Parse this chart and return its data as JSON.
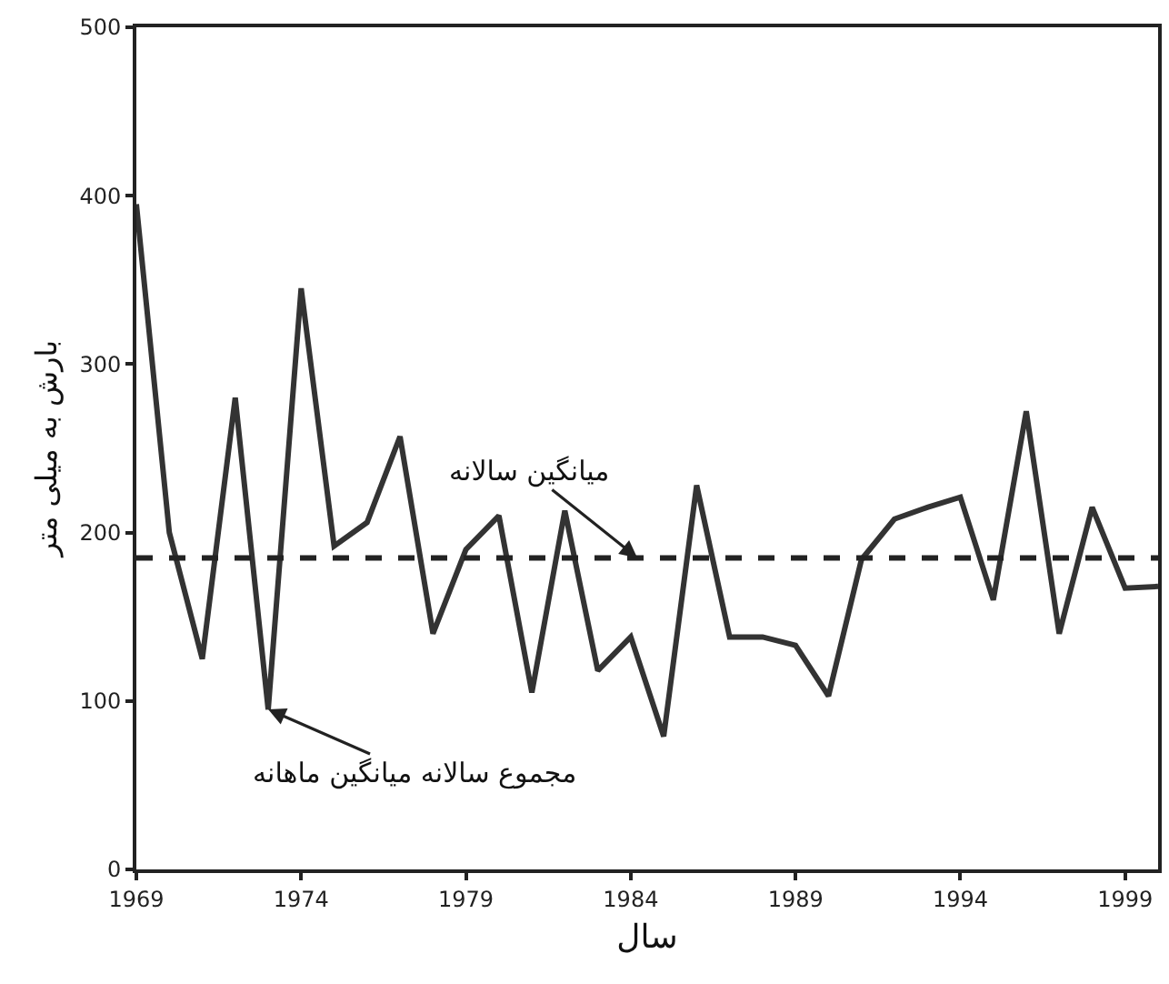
{
  "chart_data": {
    "type": "line",
    "xlabel": "سال",
    "ylabel": "بارش به میلی متر",
    "x": [
      1969,
      1970,
      1971,
      1972,
      1973,
      1974,
      1975,
      1976,
      1977,
      1978,
      1979,
      1980,
      1981,
      1982,
      1983,
      1984,
      1985,
      1986,
      1987,
      1988,
      1989,
      1990,
      1991,
      1992,
      1993,
      1994,
      1995,
      1996,
      1997,
      1998,
      1999,
      2000
    ],
    "series": [
      {
        "color": "#333333",
        "values": [
          395,
          200,
          125,
          280,
          95,
          345,
          192,
          206,
          257,
          140,
          190,
          210,
          105,
          213,
          118,
          138,
          79,
          228,
          138,
          138,
          133,
          103,
          184,
          208,
          215,
          221,
          160,
          272,
          140,
          215,
          167,
          168
        ]
      }
    ],
    "xlim": [
      1969,
      2000
    ],
    "xticks": [
      1969,
      1974,
      1979,
      1984,
      1989,
      1994,
      1999
    ],
    "ylim": [
      0,
      500
    ],
    "yticks": [
      0,
      100,
      200,
      300,
      400,
      500
    ],
    "ref_lines": [
      {
        "axis": "y",
        "value": 185,
        "color": "#222222",
        "line_style": "dashed"
      }
    ],
    "annotations": [
      {
        "text": "میانگین سالانه",
        "x": 1984.2,
        "y": 185
      },
      {
        "text": "مجموع سالانه میانگین ماهانه",
        "x": 1973,
        "y": 95
      }
    ],
    "marker": "none",
    "line_style": "solid"
  }
}
